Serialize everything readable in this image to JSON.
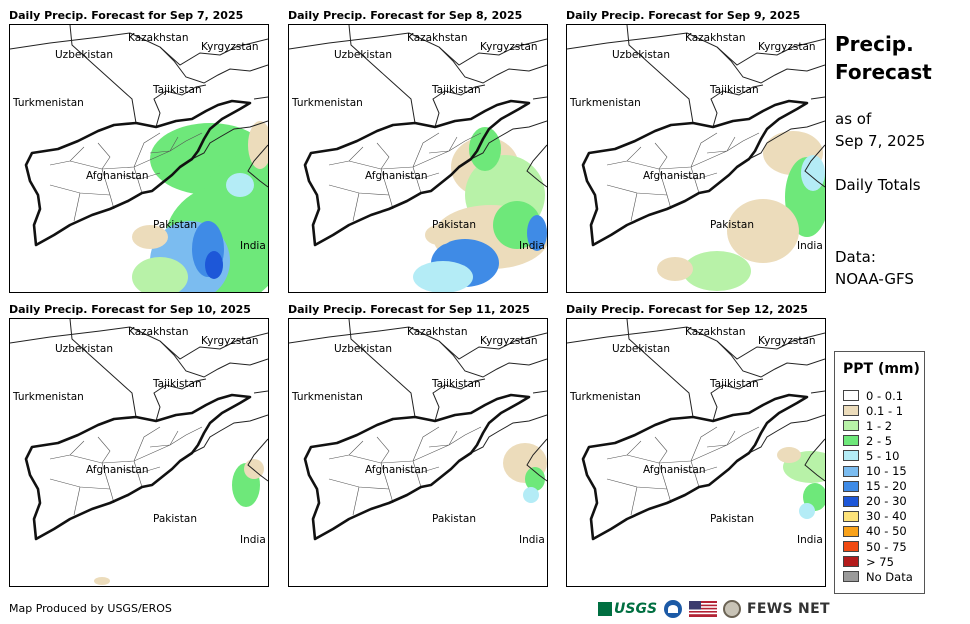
{
  "panels": [
    {
      "title": "Daily Precip. Forecast for Sep 7, 2025"
    },
    {
      "title": "Daily Precip. Forecast for Sep 8, 2025"
    },
    {
      "title": "Daily Precip. Forecast for Sep 9, 2025"
    },
    {
      "title": "Daily Precip. Forecast for Sep 10, 2025"
    },
    {
      "title": "Daily Precip. Forecast for Sep 11, 2025"
    },
    {
      "title": "Daily Precip. Forecast for Sep 12, 2025"
    }
  ],
  "map_labels": {
    "kazakhstan": "Kazakhstan",
    "uzbekistan": "Uzbekistan",
    "kyrgyzstan": "Kyrgyzstan",
    "tajikistan": "Tajikistan",
    "turkmenistan": "Turkmenistan",
    "afghanistan": "Afghanistan",
    "pakistan": "Pakistan",
    "india": "India"
  },
  "side": {
    "title_line1": "Precip.",
    "title_line2": "Forecast",
    "asof_line1": "as of",
    "asof_line2": "Sep 7, 2025",
    "totals": "Daily Totals",
    "data_line1": "Data:",
    "data_line2": "NOAA-GFS"
  },
  "legend": {
    "title": "PPT (mm)",
    "items": [
      {
        "label": "0 - 0.1",
        "color": "#ffffff"
      },
      {
        "label": "0.1 - 1",
        "color": "#ecdcbb"
      },
      {
        "label": "1 - 2",
        "color": "#b8f2a8"
      },
      {
        "label": "2 - 5",
        "color": "#6ee87a"
      },
      {
        "label": "5 - 10",
        "color": "#b4ecf6"
      },
      {
        "label": "10 - 15",
        "color": "#7bbcf0"
      },
      {
        "label": "15 - 20",
        "color": "#3f8be6"
      },
      {
        "label": "20 - 30",
        "color": "#1d57d8"
      },
      {
        "label": "30 - 40",
        "color": "#fde37a"
      },
      {
        "label": "40 - 50",
        "color": "#f9a21a"
      },
      {
        "label": "50 - 75",
        "color": "#f04a12"
      },
      {
        "label": "> 75",
        "color": "#b31b1b"
      },
      {
        "label": "No Data",
        "color": "#9a9a9a"
      }
    ]
  },
  "footer": {
    "credit": "Map Produced by USGS/EROS",
    "usgs": "USGS",
    "fews": "FEWS NET"
  }
}
